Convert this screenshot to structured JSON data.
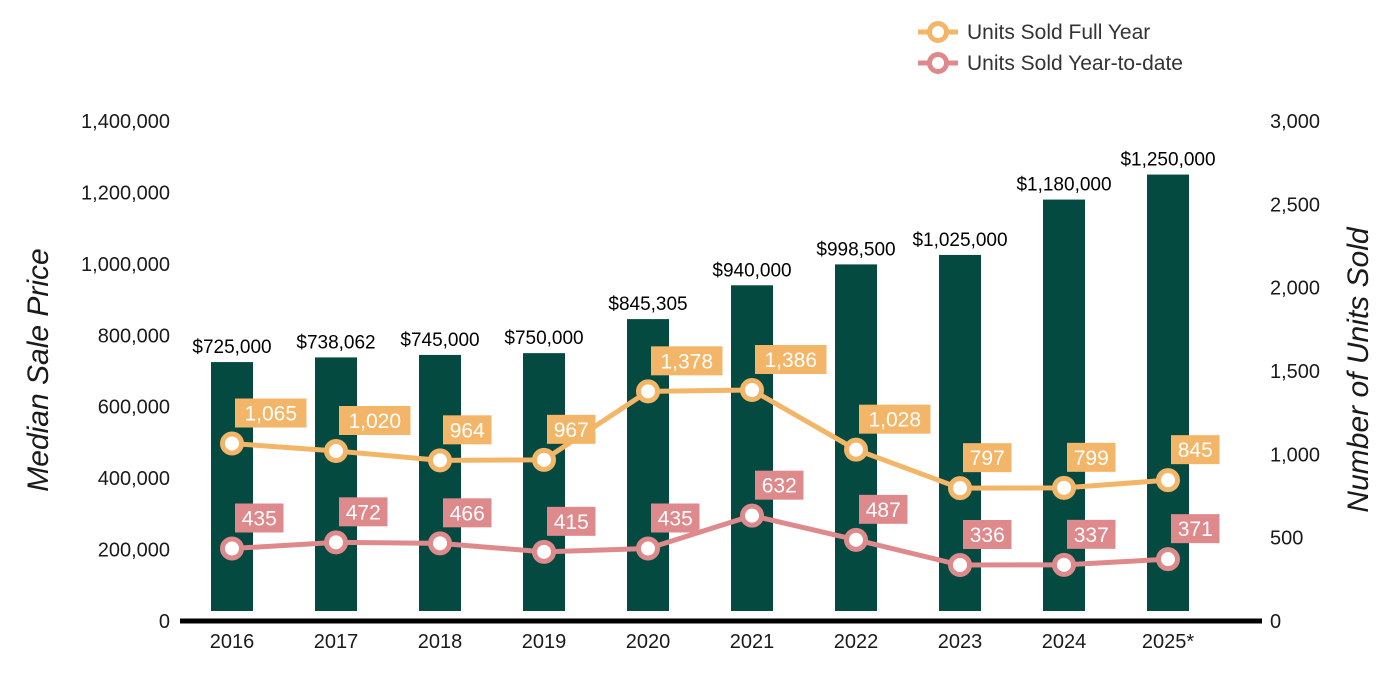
{
  "chart_data": {
    "type": "bar",
    "categories": [
      "2016",
      "2017",
      "2018",
      "2019",
      "2020",
      "2021",
      "2022",
      "2023",
      "2024",
      "2025*"
    ],
    "bars": {
      "values": [
        725000,
        738062,
        745000,
        750000,
        845305,
        940000,
        998500,
        1025000,
        1180000,
        1250000
      ],
      "labels": [
        "$725,000",
        "$738,062",
        "$745,000",
        "$750,000",
        "$845,305",
        "$940,000",
        "$998,500",
        "$1,025,000",
        "$1,180,000",
        "$1,250,000"
      ],
      "color": "#054a41"
    },
    "series": [
      {
        "name": "Units Sold Full Year",
        "type": "line",
        "axis": "right",
        "values": [
          1065,
          1020,
          964,
          967,
          1378,
          1386,
          1028,
          797,
          799,
          845
        ],
        "labels": [
          "1,065",
          "1,020",
          "964",
          "967",
          "1,378",
          "1,386",
          "1,028",
          "797",
          "799",
          "845"
        ],
        "color": "#f3b669"
      },
      {
        "name": "Units Sold Year-to-date",
        "type": "line",
        "axis": "right",
        "values": [
          435,
          472,
          466,
          415,
          435,
          632,
          487,
          336,
          337,
          371
        ],
        "labels": [
          "435",
          "472",
          "466",
          "415",
          "435",
          "632",
          "487",
          "336",
          "337",
          "371"
        ],
        "color": "#de8a8c"
      }
    ],
    "ylabel": "Median Sale Price",
    "y2label": "Number of Units Sold",
    "ylim": [
      0,
      1400000
    ],
    "y2lim": [
      0,
      3000
    ],
    "yticks": [
      "0",
      "200,000",
      "400,000",
      "600,000",
      "800,000",
      "1,000,000",
      "1,200,000",
      "1,400,000"
    ],
    "y2ticks": [
      "0",
      "500",
      "1,000",
      "1,500",
      "2,000",
      "2,500",
      "3,000"
    ],
    "grid": false,
    "legend_position": "top-right"
  }
}
